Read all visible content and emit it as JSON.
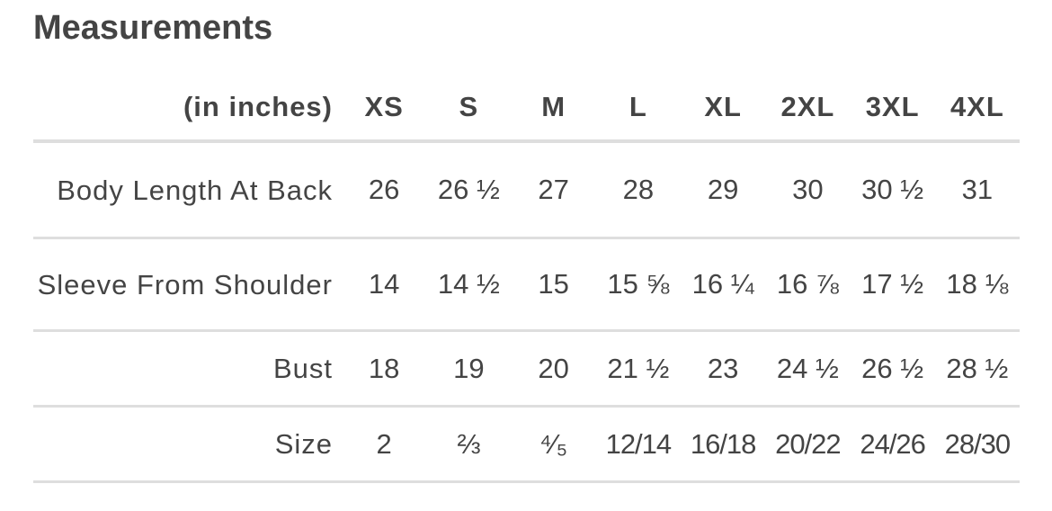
{
  "title": "Measurements",
  "table": {
    "unit_header": "(in inches)",
    "sizes": [
      "XS",
      "S",
      "M",
      "L",
      "XL",
      "2XL",
      "3XL",
      "4XL"
    ],
    "rows": [
      {
        "label": "Body Length At Back",
        "values": [
          "26",
          "26 ½",
          "27",
          "28",
          "29",
          "30",
          "30 ½",
          "31"
        ]
      },
      {
        "label": "Sleeve From Shoulder",
        "values": [
          "14",
          "14 ½",
          "15",
          "15 ⅝",
          "16 ¼",
          "16 ⅞",
          "17 ½",
          "18 ⅛"
        ]
      },
      {
        "label": "Bust",
        "values": [
          "18",
          "19",
          "20",
          "21 ½",
          "23",
          "24 ½",
          "26 ½",
          "28 ½"
        ]
      },
      {
        "label": "Size",
        "values": [
          "2",
          "⅔",
          "⁴⁄₅",
          "12/14",
          "16/18",
          "20/22",
          "24/26",
          "28/30"
        ]
      }
    ]
  }
}
